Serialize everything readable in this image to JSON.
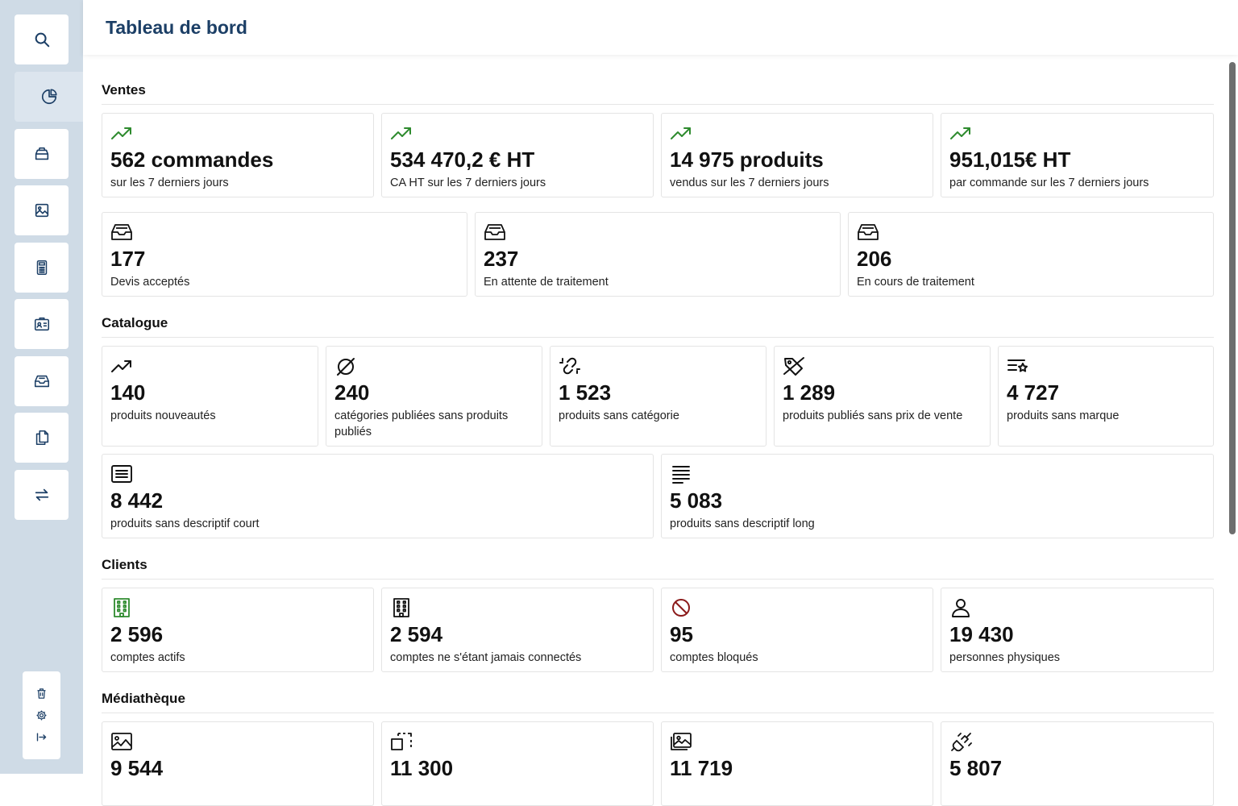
{
  "page": {
    "title": "Tableau de bord"
  },
  "sidebar": {
    "items": [
      {
        "icon": "search-icon"
      },
      {
        "icon": "pie-chart-icon",
        "active": true
      },
      {
        "icon": "box-icon"
      },
      {
        "icon": "image-icon"
      },
      {
        "icon": "calculator-icon"
      },
      {
        "icon": "contact-card-icon"
      },
      {
        "icon": "inbox-icon"
      },
      {
        "icon": "copy-icon"
      },
      {
        "icon": "arrows-exchange-icon"
      }
    ],
    "bottom": [
      {
        "icon": "trash-icon"
      },
      {
        "icon": "gear-icon"
      },
      {
        "icon": "logout-icon"
      }
    ]
  },
  "sections": {
    "ventes": {
      "title": "Ventes",
      "kpis": [
        {
          "value": "562 commandes",
          "label": "sur les 7 derniers jours",
          "icon": "trend-up-icon",
          "color": "#2e8b2e"
        },
        {
          "value": "534 470,2 € HT",
          "label": "CA HT sur les 7 derniers jours",
          "icon": "trend-up-icon",
          "color": "#2e8b2e"
        },
        {
          "value": "14 975 produits",
          "label": "vendus sur les 7 derniers jours",
          "icon": "trend-up-icon",
          "color": "#2e8b2e"
        },
        {
          "value": "951,015€ HT",
          "label": "par commande sur les 7 derniers jours",
          "icon": "trend-up-icon",
          "color": "#2e8b2e"
        }
      ],
      "quotes": [
        {
          "value": "177",
          "label": "Devis acceptés",
          "icon": "inbox-icon"
        },
        {
          "value": "237",
          "label": "En attente de traitement",
          "icon": "inbox-icon"
        },
        {
          "value": "206",
          "label": "En cours de traitement",
          "icon": "inbox-icon"
        }
      ]
    },
    "catalogue": {
      "title": "Catalogue",
      "row1": [
        {
          "value": "140",
          "label": "produits nouveautés",
          "icon": "trend-up-icon"
        },
        {
          "value": "240",
          "label": "catégories publiées sans produits publiés",
          "icon": "empty-set-icon"
        },
        {
          "value": "1 523",
          "label": "produits sans catégorie",
          "icon": "broken-link-icon"
        },
        {
          "value": "1 289",
          "label": "produits publiés sans prix de vente",
          "icon": "tag-off-icon"
        },
        {
          "value": "4 727",
          "label": "produits sans marque",
          "icon": "list-star-icon"
        }
      ],
      "row2": [
        {
          "value": "8 442",
          "label": "produits sans descriptif court",
          "icon": "text-box-icon"
        },
        {
          "value": "5 083",
          "label": "produits sans descriptif long",
          "icon": "text-lines-icon"
        }
      ]
    },
    "clients": {
      "title": "Clients",
      "kpis": [
        {
          "value": "2 596",
          "label": "comptes actifs",
          "icon": "building-icon",
          "color": "#2e8b2e"
        },
        {
          "value": "2 594",
          "label": "comptes ne s'étant jamais connectés",
          "icon": "building-icon",
          "color": "#111111"
        },
        {
          "value": "95",
          "label": "comptes bloqués",
          "icon": "blocked-icon",
          "color": "#8b1a1a"
        },
        {
          "value": "19 430",
          "label": "personnes physiques",
          "icon": "person-icon",
          "color": "#111111"
        }
      ]
    },
    "mediatheque": {
      "title": "Médiathèque",
      "kpis": [
        {
          "value": "9 544",
          "icon": "image-chart-icon"
        },
        {
          "value": "11 300",
          "icon": "resize-icon"
        },
        {
          "value": "11 719",
          "icon": "images-icon"
        },
        {
          "value": "5 807",
          "icon": "unplug-icon"
        }
      ]
    }
  }
}
